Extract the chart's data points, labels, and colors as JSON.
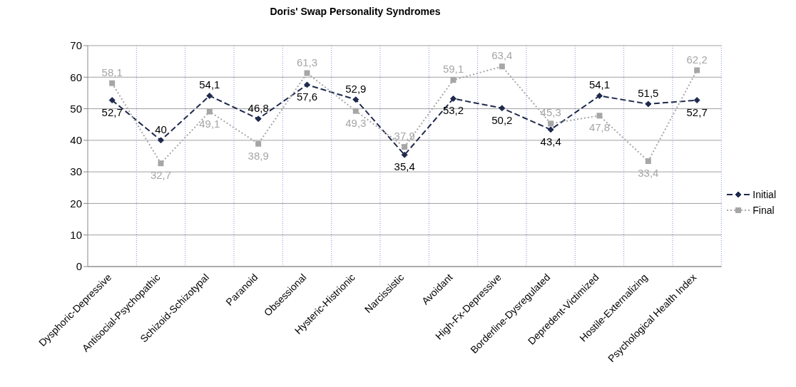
{
  "chart_data": {
    "type": "line",
    "title": "Doris' Swap Personality Syndromes",
    "categories": [
      "Dysphoric-Depressive",
      "Antisocial-Psychopathic",
      "Schizoid-Schizotypal",
      "Paranoid",
      "Obsessional",
      "Hysteric-Histrionic",
      "Narcissistic",
      "Avoidant",
      "High-Fx-Depressive",
      "Borderline-Dysregulated",
      "Depredent-Victimized",
      "Hostile-Externalizing",
      "Psychological Health Index"
    ],
    "series": [
      {
        "name": "Initial",
        "color": "#1f2a4d",
        "marker": "diamond",
        "line_style": "dashed",
        "values": [
          52.7,
          40,
          54.1,
          46.8,
          57.6,
          52.9,
          35.4,
          53.2,
          50.2,
          43.4,
          54.1,
          51.5,
          52.7
        ],
        "value_labels": [
          "52,7",
          "40",
          "54,1",
          "46,8",
          "57,6",
          "52,9",
          "35,4",
          "53,2",
          "50,2",
          "43,4",
          "54,1",
          "51,5",
          "52,7"
        ]
      },
      {
        "name": "Final",
        "color": "#a6a6a6",
        "marker": "square",
        "line_style": "dotted",
        "values": [
          58.1,
          32.7,
          49.1,
          38.9,
          61.3,
          49.3,
          37.9,
          59.1,
          63.4,
          45.3,
          47.8,
          33.4,
          62.2
        ],
        "value_labels": [
          "58,1",
          "32,7",
          "49,1",
          "38,9",
          "61,3",
          "49,3",
          "37,9",
          "59,1",
          "63,4",
          "45,3",
          "47,8",
          "33,4",
          "62,2"
        ]
      }
    ],
    "ylim": [
      0,
      70
    ],
    "yticks": [
      0,
      10,
      20,
      30,
      40,
      50,
      60,
      70
    ],
    "grid": true,
    "legend": "right"
  }
}
